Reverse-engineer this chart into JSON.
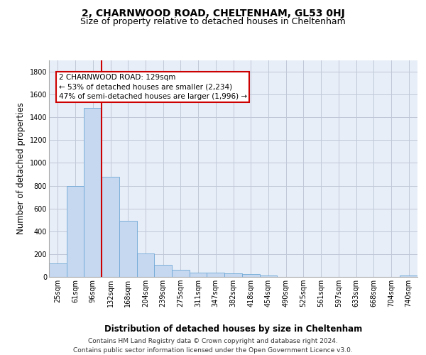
{
  "title1": "2, CHARNWOOD ROAD, CHELTENHAM, GL53 0HJ",
  "title2": "Size of property relative to detached houses in Cheltenham",
  "xlabel": "Distribution of detached houses by size in Cheltenham",
  "ylabel": "Number of detached properties",
  "footer1": "Contains HM Land Registry data © Crown copyright and database right 2024.",
  "footer2": "Contains public sector information licensed under the Open Government Licence v3.0.",
  "categories": [
    "25sqm",
    "61sqm",
    "96sqm",
    "132sqm",
    "168sqm",
    "204sqm",
    "239sqm",
    "275sqm",
    "311sqm",
    "347sqm",
    "382sqm",
    "418sqm",
    "454sqm",
    "490sqm",
    "525sqm",
    "561sqm",
    "597sqm",
    "633sqm",
    "668sqm",
    "704sqm",
    "740sqm"
  ],
  "values": [
    120,
    800,
    1480,
    880,
    490,
    205,
    105,
    65,
    40,
    35,
    30,
    25,
    10,
    0,
    0,
    0,
    0,
    0,
    0,
    0,
    10
  ],
  "bar_color": "#c5d8f0",
  "bar_edge_color": "#6fa8d6",
  "vline_pos": 2.5,
  "vline_color": "#cc0000",
  "annotation_text": "2 CHARNWOOD ROAD: 129sqm\n← 53% of detached houses are smaller (2,234)\n47% of semi-detached houses are larger (1,996) →",
  "annotation_box_color": "#cc0000",
  "ylim": [
    0,
    1900
  ],
  "yticks": [
    0,
    200,
    400,
    600,
    800,
    1000,
    1200,
    1400,
    1600,
    1800
  ],
  "grid_color": "#c0c8d8",
  "bg_color": "#e8eef8",
  "title1_fontsize": 10,
  "title2_fontsize": 9,
  "xlabel_fontsize": 8.5,
  "ylabel_fontsize": 8.5,
  "tick_fontsize": 7,
  "footer_fontsize": 6.5,
  "ann_fontsize": 7.5
}
